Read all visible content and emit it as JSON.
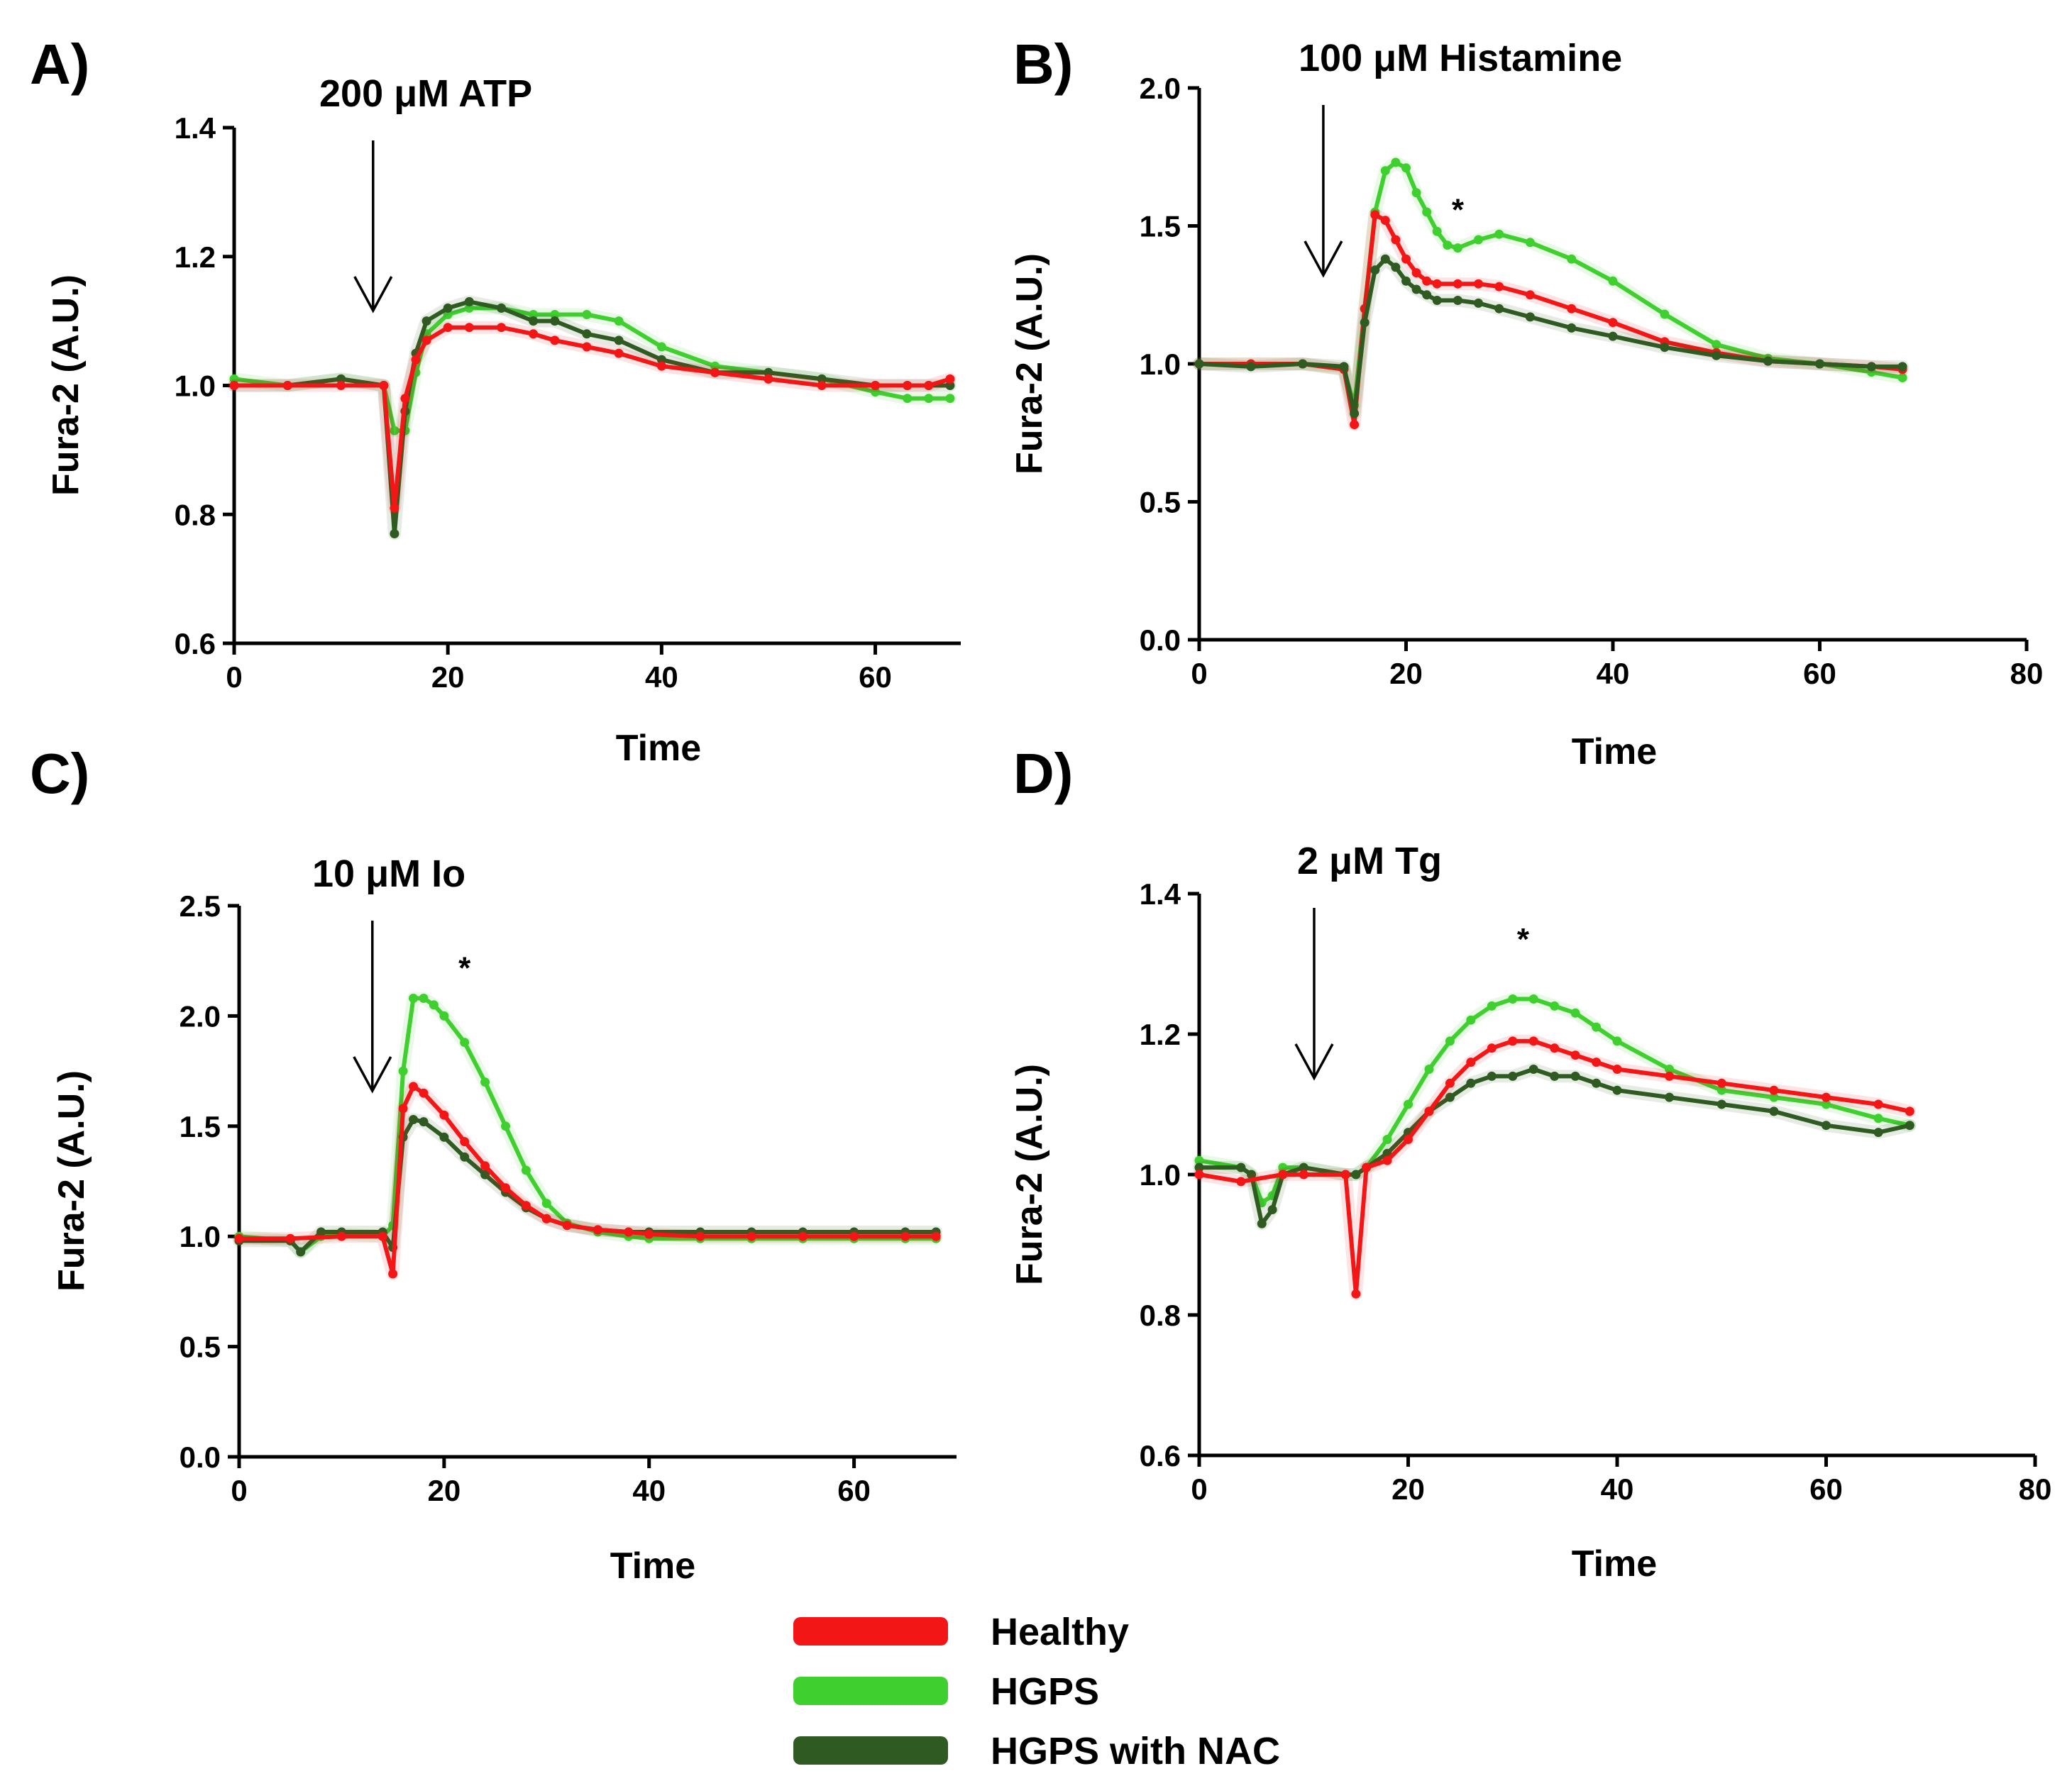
{
  "colors": {
    "healthy": "#f21616",
    "hgps": "#3fcf2f",
    "hgps_nac": "#2f5a22",
    "axis": "#000000"
  },
  "legend": [
    {
      "key": "healthy",
      "label": "Healthy"
    },
    {
      "key": "hgps",
      "label": "HGPS"
    },
    {
      "key": "hgps_nac",
      "label": "HGPS with NAC"
    }
  ],
  "chart_data": [
    {
      "type": "line",
      "panel": "A)",
      "stimulus": "200 μM ATP",
      "arrow_x": 13,
      "xlabel": "Time",
      "ylabel": "Fura-2 (A.U.)",
      "xlim": [
        0,
        68
      ],
      "ylim": [
        0.6,
        1.4
      ],
      "xticks": [
        "0",
        "20",
        "40",
        "60"
      ],
      "yticks": [
        "0.6",
        "0.8",
        "1.0",
        "1.2",
        "1.4"
      ],
      "series": [
        {
          "key": "hgps",
          "name": "HGPS",
          "x": [
            0,
            5,
            10,
            14,
            15,
            16,
            17,
            18,
            20,
            22,
            25,
            28,
            30,
            33,
            36,
            40,
            45,
            50,
            55,
            60,
            63,
            65,
            67
          ],
          "y": [
            1.01,
            1.0,
            1.01,
            1.0,
            0.93,
            0.93,
            1.02,
            1.08,
            1.11,
            1.12,
            1.12,
            1.11,
            1.11,
            1.11,
            1.1,
            1.06,
            1.03,
            1.02,
            1.01,
            0.99,
            0.98,
            0.98,
            0.98
          ]
        },
        {
          "key": "hgps_nac",
          "name": "HGPS with NAC",
          "x": [
            0,
            5,
            10,
            14,
            15,
            16,
            17,
            18,
            20,
            22,
            25,
            28,
            30,
            33,
            36,
            40,
            45,
            50,
            55,
            60,
            63,
            65,
            67
          ],
          "y": [
            1.0,
            1.0,
            1.01,
            1.0,
            0.77,
            0.96,
            1.05,
            1.1,
            1.12,
            1.13,
            1.12,
            1.1,
            1.1,
            1.08,
            1.07,
            1.04,
            1.02,
            1.02,
            1.01,
            1.0,
            1.0,
            1.0,
            1.0
          ]
        },
        {
          "key": "healthy",
          "name": "Healthy",
          "x": [
            0,
            5,
            10,
            14,
            15,
            16,
            17,
            18,
            20,
            22,
            25,
            28,
            30,
            33,
            36,
            40,
            45,
            50,
            55,
            60,
            63,
            65,
            67
          ],
          "y": [
            1.0,
            1.0,
            1.0,
            1.0,
            0.81,
            0.98,
            1.04,
            1.07,
            1.09,
            1.09,
            1.09,
            1.08,
            1.07,
            1.06,
            1.05,
            1.03,
            1.02,
            1.01,
            1.0,
            1.0,
            1.0,
            1.0,
            1.01
          ]
        }
      ],
      "annotations": []
    },
    {
      "type": "line",
      "panel": "B)",
      "stimulus": "100 μM Histamine",
      "arrow_x": 12,
      "xlabel": "Time",
      "ylabel": "Fura-2 (A.U.)",
      "xlim": [
        0,
        80
      ],
      "ylim": [
        0.0,
        2.0
      ],
      "xticks": [
        "0",
        "20",
        "40",
        "60",
        "80"
      ],
      "yticks": [
        "0.0",
        "0.5",
        "1.0",
        "1.5",
        "2.0"
      ],
      "series": [
        {
          "key": "hgps",
          "name": "HGPS",
          "x": [
            0,
            5,
            10,
            14,
            15,
            16,
            17,
            18,
            19,
            20,
            21,
            22,
            23,
            24,
            25,
            27,
            29,
            32,
            36,
            40,
            45,
            50,
            55,
            60,
            65,
            68
          ],
          "y": [
            1.0,
            1.0,
            1.0,
            0.98,
            0.85,
            1.2,
            1.55,
            1.7,
            1.73,
            1.71,
            1.62,
            1.55,
            1.48,
            1.43,
            1.42,
            1.45,
            1.47,
            1.44,
            1.38,
            1.3,
            1.18,
            1.07,
            1.02,
            1.0,
            0.97,
            0.95
          ]
        },
        {
          "key": "healthy",
          "name": "Healthy",
          "x": [
            0,
            5,
            10,
            14,
            15,
            16,
            17,
            18,
            19,
            20,
            21,
            22,
            23,
            25,
            27,
            29,
            32,
            36,
            40,
            45,
            50,
            55,
            60,
            65,
            68
          ],
          "y": [
            1.0,
            1.0,
            1.0,
            0.98,
            0.78,
            1.2,
            1.54,
            1.52,
            1.45,
            1.38,
            1.33,
            1.3,
            1.29,
            1.29,
            1.29,
            1.28,
            1.25,
            1.2,
            1.15,
            1.08,
            1.04,
            1.01,
            1.0,
            0.99,
            0.98
          ]
        },
        {
          "key": "hgps_nac",
          "name": "HGPS with NAC",
          "x": [
            0,
            5,
            10,
            14,
            15,
            16,
            17,
            18,
            19,
            20,
            21,
            22,
            23,
            25,
            27,
            29,
            32,
            36,
            40,
            45,
            50,
            55,
            60,
            65,
            68
          ],
          "y": [
            1.0,
            0.99,
            1.0,
            0.99,
            0.82,
            1.15,
            1.34,
            1.38,
            1.35,
            1.3,
            1.27,
            1.25,
            1.23,
            1.23,
            1.22,
            1.2,
            1.17,
            1.13,
            1.1,
            1.06,
            1.03,
            1.01,
            1.0,
            0.99,
            0.99
          ]
        }
      ],
      "annotations": [
        {
          "text": "*",
          "x": 25,
          "y": 1.52
        }
      ]
    },
    {
      "type": "line",
      "panel": "C)",
      "stimulus": "10 μM Io",
      "arrow_x": 13,
      "xlabel": "Time",
      "ylabel": "Fura-2 (A.U.)",
      "xlim": [
        0,
        70
      ],
      "ylim": [
        0.0,
        2.5
      ],
      "xticks": [
        "0",
        "20",
        "40",
        "60"
      ],
      "yticks": [
        "0.0",
        "0.5",
        "1.0",
        "1.5",
        "2.0",
        "2.5"
      ],
      "series": [
        {
          "key": "hgps",
          "name": "HGPS",
          "x": [
            0,
            5,
            6,
            8,
            10,
            14,
            15,
            16,
            17,
            18,
            19,
            20,
            22,
            24,
            26,
            28,
            30,
            32,
            35,
            38,
            40,
            45,
            50,
            55,
            60,
            65,
            68
          ],
          "y": [
            1.0,
            0.98,
            0.93,
            1.0,
            1.01,
            1.0,
            1.05,
            1.75,
            2.08,
            2.08,
            2.05,
            2.0,
            1.88,
            1.7,
            1.5,
            1.3,
            1.15,
            1.06,
            1.02,
            1.0,
            0.99,
            0.99,
            0.99,
            0.99,
            0.99,
            0.99,
            0.99
          ]
        },
        {
          "key": "hgps_nac",
          "name": "HGPS with NAC",
          "x": [
            0,
            5,
            6,
            8,
            10,
            14,
            15,
            16,
            17,
            18,
            20,
            22,
            24,
            26,
            28,
            30,
            32,
            35,
            38,
            40,
            45,
            50,
            55,
            60,
            65,
            68
          ],
          "y": [
            0.98,
            0.98,
            0.93,
            1.02,
            1.02,
            1.02,
            0.95,
            1.45,
            1.53,
            1.52,
            1.45,
            1.36,
            1.28,
            1.2,
            1.13,
            1.08,
            1.05,
            1.03,
            1.02,
            1.02,
            1.02,
            1.02,
            1.02,
            1.02,
            1.02,
            1.02
          ]
        },
        {
          "key": "healthy",
          "name": "Healthy",
          "x": [
            0,
            5,
            10,
            14,
            15,
            16,
            17,
            18,
            20,
            22,
            24,
            26,
            28,
            30,
            32,
            35,
            38,
            40,
            45,
            50,
            55,
            60,
            65,
            68
          ],
          "y": [
            0.99,
            0.99,
            1.0,
            1.0,
            0.83,
            1.58,
            1.68,
            1.65,
            1.55,
            1.43,
            1.32,
            1.22,
            1.14,
            1.08,
            1.05,
            1.03,
            1.02,
            1.01,
            1.0,
            1.0,
            1.0,
            1.0,
            1.0,
            1.0
          ]
        }
      ],
      "annotations": [
        {
          "text": "*",
          "x": 22,
          "y": 2.17
        }
      ]
    },
    {
      "type": "line",
      "panel": "D)",
      "stimulus": "2 μM Tg",
      "arrow_x": 11,
      "xlabel": "Time",
      "ylabel": "Fura-2 (A.U.)",
      "xlim": [
        0,
        80
      ],
      "ylim": [
        0.6,
        1.4
      ],
      "xticks": [
        "0",
        "20",
        "40",
        "60",
        "80"
      ],
      "yticks": [
        "0.6",
        "0.8",
        "1.0",
        "1.2",
        "1.4"
      ],
      "series": [
        {
          "key": "hgps",
          "name": "HGPS",
          "x": [
            0,
            4,
            5,
            6,
            7,
            8,
            10,
            14,
            15,
            16,
            18,
            20,
            22,
            24,
            26,
            28,
            30,
            32,
            34,
            36,
            38,
            40,
            45,
            50,
            55,
            60,
            65,
            68
          ],
          "y": [
            1.02,
            1.01,
            1.0,
            0.96,
            0.97,
            1.01,
            1.01,
            1.0,
            1.0,
            1.01,
            1.05,
            1.1,
            1.15,
            1.19,
            1.22,
            1.24,
            1.25,
            1.25,
            1.24,
            1.23,
            1.21,
            1.19,
            1.15,
            1.12,
            1.11,
            1.1,
            1.08,
            1.07
          ]
        },
        {
          "key": "hgps_nac",
          "name": "HGPS with NAC",
          "x": [
            0,
            4,
            5,
            6,
            7,
            8,
            10,
            14,
            15,
            16,
            18,
            20,
            22,
            24,
            26,
            28,
            30,
            32,
            34,
            36,
            38,
            40,
            45,
            50,
            55,
            60,
            65,
            68
          ],
          "y": [
            1.01,
            1.01,
            1.0,
            0.93,
            0.95,
            1.0,
            1.01,
            1.0,
            1.0,
            1.01,
            1.03,
            1.06,
            1.09,
            1.11,
            1.13,
            1.14,
            1.14,
            1.15,
            1.14,
            1.14,
            1.13,
            1.12,
            1.11,
            1.1,
            1.09,
            1.07,
            1.06,
            1.07
          ]
        },
        {
          "key": "healthy",
          "name": "Healthy",
          "x": [
            0,
            4,
            8,
            10,
            14,
            15,
            16,
            18,
            20,
            22,
            24,
            26,
            28,
            30,
            32,
            34,
            36,
            38,
            40,
            45,
            50,
            55,
            60,
            65,
            68
          ],
          "y": [
            1.0,
            0.99,
            1.0,
            1.0,
            1.0,
            0.83,
            1.01,
            1.02,
            1.05,
            1.09,
            1.13,
            1.16,
            1.18,
            1.19,
            1.19,
            1.18,
            1.17,
            1.16,
            1.15,
            1.14,
            1.13,
            1.12,
            1.11,
            1.1,
            1.09
          ]
        }
      ],
      "annotations": [
        {
          "text": "*",
          "x": 31,
          "y": 1.32
        }
      ]
    }
  ]
}
